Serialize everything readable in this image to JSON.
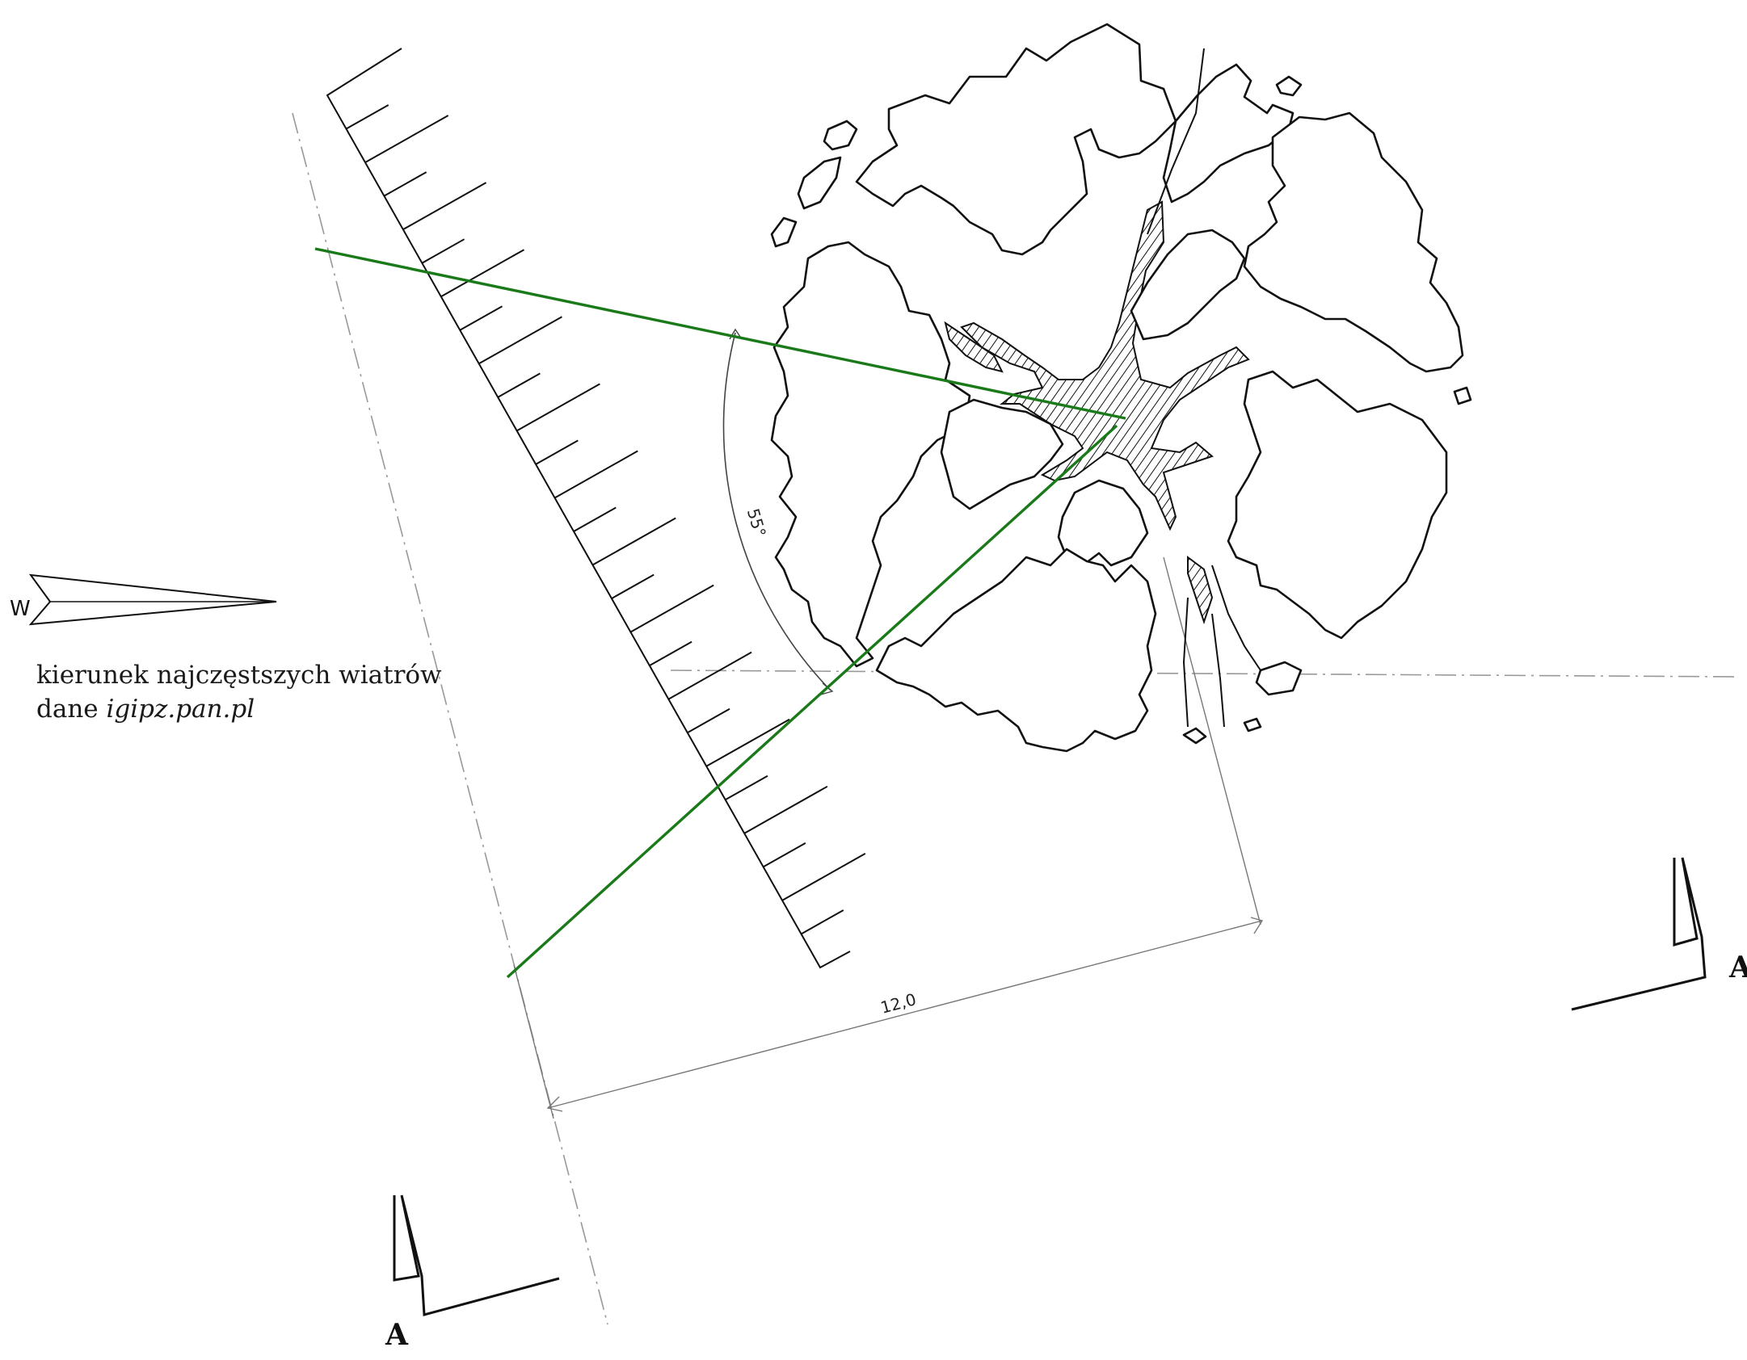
{
  "wind": {
    "direction_letter": "W",
    "caption_line1": "kierunek najczęstszych wiatrów",
    "caption_line2_prefix": "dane ",
    "caption_line2_source": "igipz.pan.pl"
  },
  "dimensions": {
    "angle_label": "55°",
    "distance_label": "12,0"
  },
  "section_markers": {
    "left_label": "A",
    "right_label": "A"
  },
  "colors": {
    "sight_lines": "#1a7a1a",
    "ink": "#111111",
    "construction": "#999999"
  }
}
